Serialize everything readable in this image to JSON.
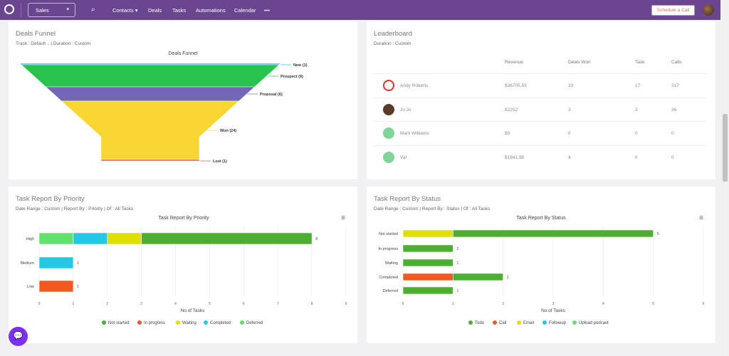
{
  "nav": {
    "module": "Sales",
    "items": [
      "Contacts",
      "Deals",
      "Tasks",
      "Automations",
      "Calendar"
    ],
    "more": "•••",
    "cta": "Schedule a Call",
    "brand_color": "#6b4690"
  },
  "funnel": {
    "title": "Deals Funnel",
    "subtitle": "Track : Default .. | Duration : Custom",
    "chart_data": {
      "type": "funnel",
      "title": "Deals Funnel",
      "categories": [
        "New",
        "Prospect",
        "Proposal",
        "Won",
        "Lost"
      ],
      "values": [
        1,
        9,
        6,
        24,
        1
      ],
      "labels": [
        "New (1)",
        "Prospect (9)",
        "Proposal (6)",
        "Won (24)",
        "Lost (1)"
      ],
      "colors": [
        "#2bb7e6",
        "#29c24d",
        "#7366b8",
        "#f9d531",
        "#f0544a"
      ]
    }
  },
  "leaderboard": {
    "title": "Leaderboard",
    "subtitle": "Duration : Custom",
    "columns": [
      "Revenue",
      "Deals Won",
      "Task",
      "Calls"
    ],
    "rows": [
      {
        "name": "Andy Roberts",
        "revenue": "$36705.59",
        "won": "33",
        "task": "17",
        "calls": "317"
      },
      {
        "name": "Jo Jo",
        "revenue": "$2252",
        "won": "3",
        "task": "3",
        "calls": "36"
      },
      {
        "name": "Mark Williams",
        "revenue": "$0",
        "won": "0",
        "task": "0",
        "calls": "0"
      },
      {
        "name": "Val",
        "revenue": "$1841.98",
        "won": "4",
        "task": "0",
        "calls": "0"
      }
    ]
  },
  "priority": {
    "title": "Task Report By Priority",
    "subtitle": "Date Range : Custom | Report By : Priority | Of : All Tasks"
  },
  "status": {
    "title": "Task Report By Status",
    "subtitle": "Date Range : Custom | Report By : Status | Of : All Tasks"
  },
  "chart_data": [
    {
      "type": "bar",
      "orientation": "horizontal",
      "stacked": true,
      "title": "Task Report By Priority",
      "xlabel": "No.of Tasks",
      "xlim": [
        0,
        9
      ],
      "xticks": [
        0,
        1,
        2,
        3,
        4,
        5,
        6,
        7,
        8,
        9
      ],
      "categories": [
        "High",
        "Medium",
        "Low"
      ],
      "totals": [
        8,
        1,
        1
      ],
      "legend": "bottom",
      "series": [
        {
          "name": "Not started",
          "color": "#4caf32",
          "values": [
            5,
            0,
            0
          ]
        },
        {
          "name": "In progress",
          "color": "#f05a22",
          "values": [
            0,
            0,
            1
          ]
        },
        {
          "name": "Waiting",
          "color": "#dfe000",
          "values": [
            1,
            0,
            0
          ]
        },
        {
          "name": "Completed",
          "color": "#23c8e4",
          "values": [
            1,
            1,
            0
          ]
        },
        {
          "name": "Deferred",
          "color": "#62e06e",
          "values": [
            1,
            0,
            0
          ]
        }
      ]
    },
    {
      "type": "bar",
      "orientation": "horizontal",
      "stacked": true,
      "title": "Task Report By Status",
      "xlabel": "No.of Tasks",
      "xlim": [
        0,
        6
      ],
      "xticks": [
        0,
        1,
        2,
        3,
        4,
        5,
        6
      ],
      "categories": [
        "Not started",
        "In progress",
        "Waiting",
        "Completed",
        "Deferred"
      ],
      "totals": [
        5,
        1,
        1,
        2,
        1
      ],
      "legend": "bottom",
      "series": [
        {
          "name": "Todo",
          "color": "#4caf32",
          "values": [
            4,
            1,
            1,
            1,
            1
          ]
        },
        {
          "name": "Call",
          "color": "#f05a22",
          "values": [
            0,
            0,
            0,
            1,
            0
          ]
        },
        {
          "name": "Email",
          "color": "#dfe000",
          "values": [
            1,
            0,
            0,
            0,
            0
          ]
        },
        {
          "name": "Followup",
          "color": "#23c8e4",
          "values": [
            0,
            0,
            0,
            0,
            0
          ]
        },
        {
          "name": "Upload podcast",
          "color": "#62e06e",
          "values": [
            0,
            0,
            0,
            0,
            0
          ]
        }
      ]
    }
  ]
}
